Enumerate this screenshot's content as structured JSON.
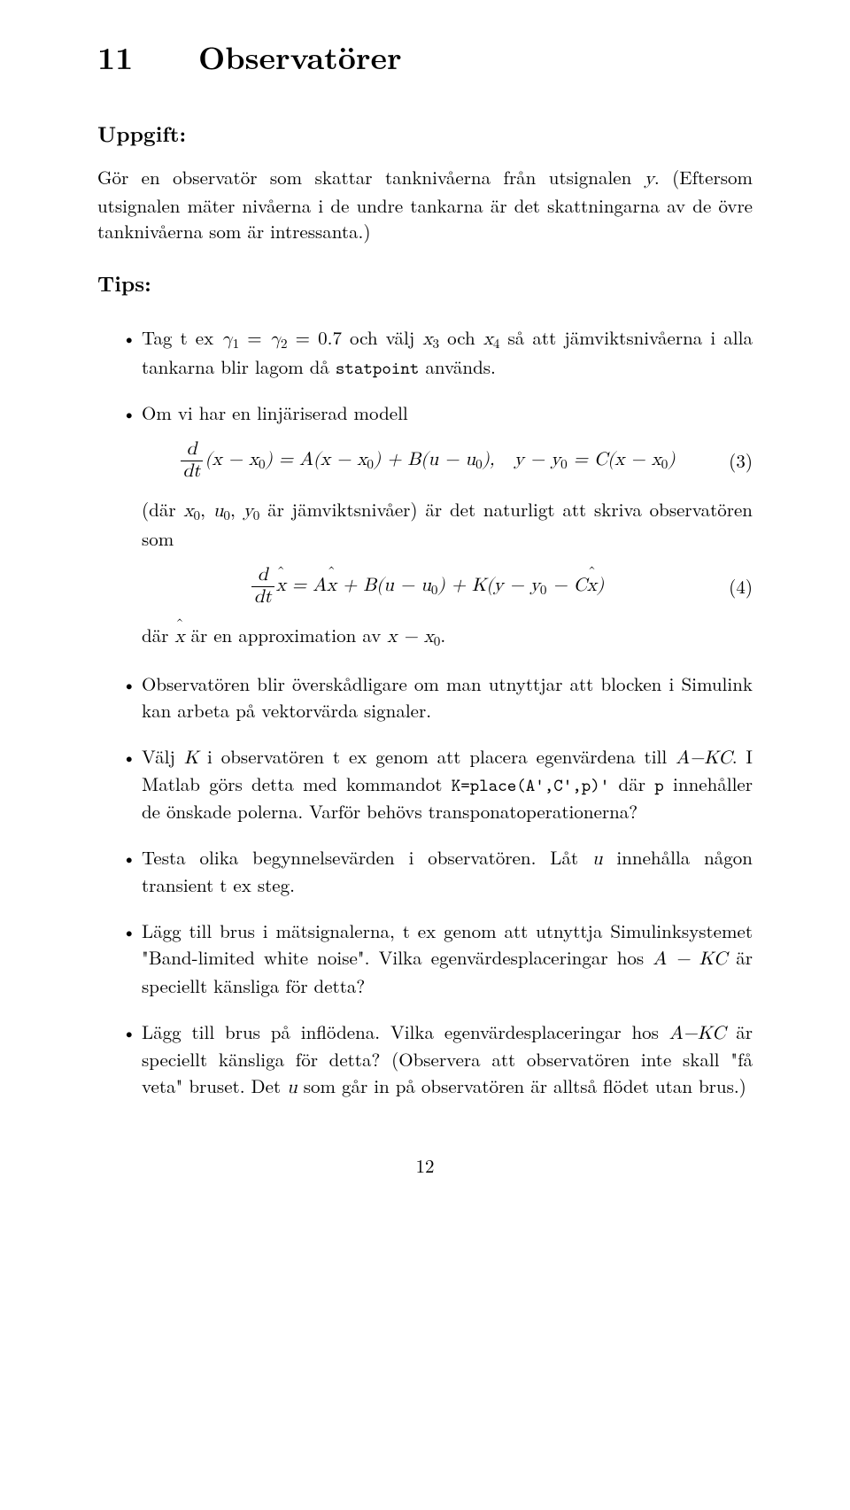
{
  "section_number": "11",
  "section_title": "Observatörer",
  "uppgift_label": "Uppgift:",
  "uppgift_text_1": "Gör en observatör som skattar tanknivåerna från utsignalen ",
  "uppgift_y": "y",
  "uppgift_text_2": ". (Eftersom utsignalen mäter nivåerna i de undre tankarna är det skattningarna av de övre tanknivåerna som är intressanta.)",
  "tips_label": "Tips:",
  "b1_a": "Tag t ex ",
  "b1_g1": "γ",
  "b1_s1": "1",
  "b1_eq": " = ",
  "b1_g2": "γ",
  "b1_s2": "2",
  "b1_val": " = 0.7 och välj ",
  "b1_x3": "x",
  "b1_s3": "3",
  "b1_and": " och ",
  "b1_x4": "x",
  "b1_s4": "4",
  "b1_rest": " så att jämviktsnivåerna i alla tankarna blir lagom då ",
  "b1_statpoint": "statpoint",
  "b1_end": " används.",
  "b2_intro": "Om vi har en linjäriserad modell",
  "eq3_num_d": "d",
  "eq3_den": "dt",
  "eq3_body_a": "(x − x",
  "eq3_s0a": "0",
  "eq3_body_b": ") = A(x − x",
  "eq3_s0b": "0",
  "eq3_body_c": ") + B(u − u",
  "eq3_s0c": "0",
  "eq3_body_d": "),",
  "eq3_rhs_a": "y − y",
  "eq3_s0e": "0",
  "eq3_rhs_b": " = C(x − x",
  "eq3_s0f": "0",
  "eq3_rhs_c": ")",
  "eq3_label": "(3)",
  "b2_mid_a": "(där ",
  "b2_mid_x0": "x",
  "b2_mid_s0a": "0",
  "b2_mid_comma1": ", ",
  "b2_mid_u0": "u",
  "b2_mid_s0b": "0",
  "b2_mid_comma2": ", ",
  "b2_mid_y0": "y",
  "b2_mid_s0c": "0",
  "b2_mid_rest": " är jämviktsnivåer) är det naturligt att skriva observatören som",
  "eq4_num_d": "d",
  "eq4_den": "dt",
  "eq4_xhat": "x",
  "eq4_a": " = A",
  "eq4_xhat2": "x",
  "eq4_b": " + B(u − u",
  "eq4_s0": "0",
  "eq4_c": ") + K(y − y",
  "eq4_s0b": "0",
  "eq4_d": " − C",
  "eq4_xhat3": "x",
  "eq4_e": ")",
  "eq4_label": "(4)",
  "b2_out_a": "där ",
  "b2_out_xhat": "x",
  "b2_out_b": " är en approximation av ",
  "b2_out_x": "x − x",
  "b2_out_s0": "0",
  "b2_out_c": ".",
  "b3": "Observatören blir överskådligare om man utnyttjar att blocken i Simulink kan arbeta på vektorvärda signaler.",
  "b4_a": "Välj ",
  "b4_K": "K",
  "b4_b": " i observatören t ex genom att placera egenvärdena till ",
  "b4_A": "A",
  "b4_minus": "−",
  "b4_KC": "KC",
  "b4_c": ". I Matlab görs detta med kommandot ",
  "b4_cmd": "K=place(A',C',p)'",
  "b4_d": " där ",
  "b4_p": "p",
  "b4_e": " innehåller de önskade polerna. Varför behövs transponatoperationerna?",
  "b5_a": "Testa olika begynnelsevärden i observatören. Låt ",
  "b5_u": "u",
  "b5_b": " innehålla någon transient t ex steg.",
  "b6_a": "Lägg till brus i mätsignalerna, t ex genom att utnyttja Simulinksystemet \"Band-limited white noise\". Vilka egenvärdesplaceringar hos ",
  "b6_A": "A",
  "b6_minus": " − ",
  "b6_KC": "KC",
  "b6_b": " är speciellt känsliga för detta?",
  "b7_a": "Lägg till brus på inflödena. Vilka egenvärdesplaceringar hos ",
  "b7_A": "A",
  "b7_minus": "−",
  "b7_KC": "KC",
  "b7_b": " är speciellt känsliga för detta? (Observera att observatören inte skall \"få veta\" bruset. Det ",
  "b7_u": "u",
  "b7_c": " som går in på observatören är alltså flödet utan brus.)",
  "page_number": "12"
}
